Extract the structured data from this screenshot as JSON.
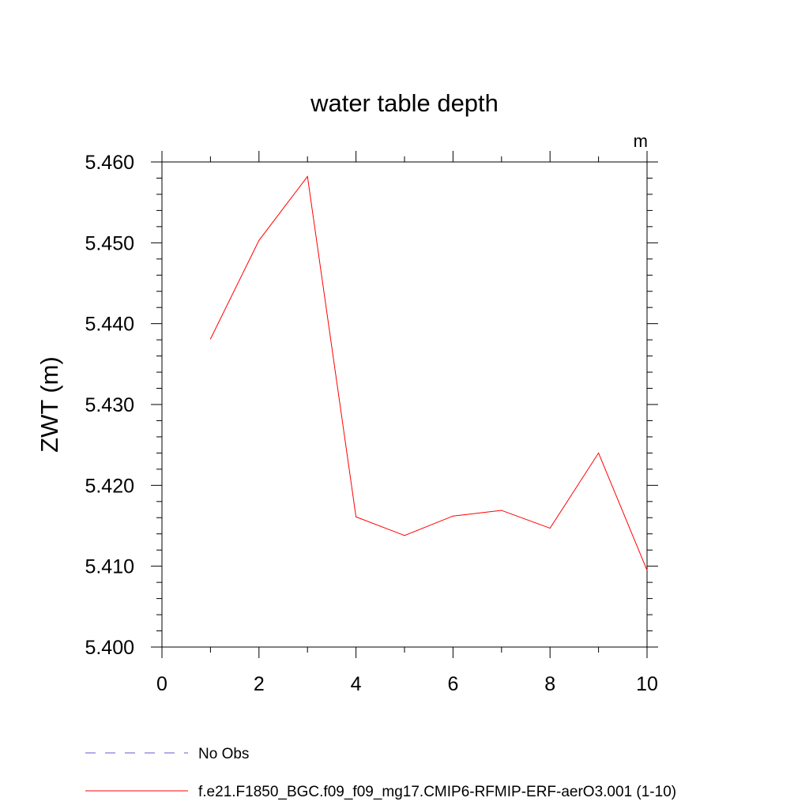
{
  "chart_data": {
    "type": "line",
    "title": "water table depth",
    "units_label": "m",
    "xlabel": "",
    "ylabel": "ZWT  (m)",
    "xlim": [
      0,
      10
    ],
    "ylim": [
      5.4,
      5.46
    ],
    "x_ticks": [
      0,
      2,
      4,
      6,
      8,
      10
    ],
    "x_tick_labels": [
      "0",
      "2",
      "4",
      "6",
      "8",
      "10"
    ],
    "y_ticks": [
      5.4,
      5.41,
      5.42,
      5.43,
      5.44,
      5.45,
      5.46
    ],
    "y_tick_labels": [
      "5.400",
      "5.410",
      "5.420",
      "5.430",
      "5.440",
      "5.450",
      "5.460"
    ],
    "grid": false,
    "legend_position": "bottom",
    "series": [
      {
        "name": "f.e21.F1850_BGC.f09_f09_mg17.CMIP6-RFMIP-ERF-aerO3.001 (1-10)",
        "color": "#ff0000",
        "style": "solid",
        "x": [
          1,
          2,
          3,
          4,
          5,
          6,
          7,
          8,
          9,
          10
        ],
        "values": [
          5.4381,
          5.4503,
          5.4582,
          5.4161,
          5.4138,
          5.4162,
          5.4169,
          5.4147,
          5.424,
          5.4095
        ]
      }
    ],
    "legend": [
      {
        "label": "No Obs",
        "color": "#6a5acd",
        "style": "dashed"
      },
      {
        "label": "f.e21.F1850_BGC.f09_f09_mg17.CMIP6-RFMIP-ERF-aerO3.001 (1-10)",
        "color": "#ff0000",
        "style": "solid"
      }
    ]
  }
}
